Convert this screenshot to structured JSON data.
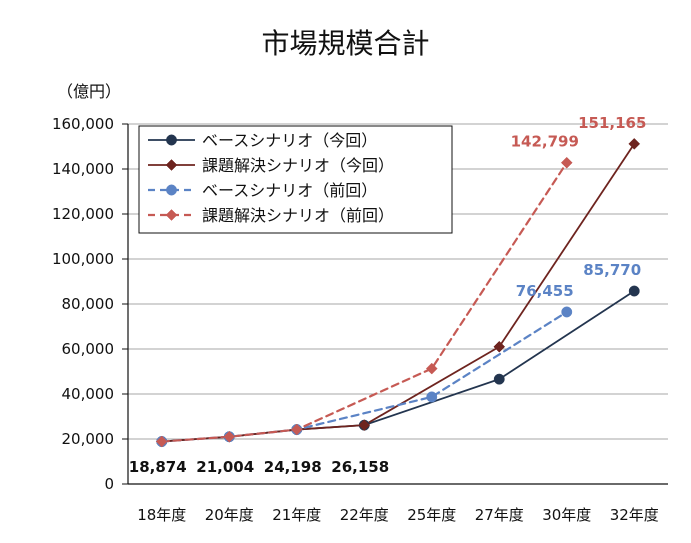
{
  "chart_data": {
    "type": "line",
    "title": "市場規模合計",
    "y_unit_label": "（億円）",
    "categories": [
      "18年度",
      "20年度",
      "21年度",
      "22年度",
      "25年度",
      "27年度",
      "30年度",
      "32年度"
    ],
    "ylim": [
      0,
      160000
    ],
    "y_ticks": [
      0,
      20000,
      40000,
      60000,
      80000,
      100000,
      120000,
      140000,
      160000
    ],
    "y_tick_labels": [
      "0",
      "20,000",
      "40,000",
      "60,000",
      "80,000",
      "100,000",
      "120,000",
      "140,000",
      "160,000"
    ],
    "grid": true,
    "legend_position": "top-left",
    "series": [
      {
        "name": "ベースシナリオ（今回）",
        "x": [
          0,
          1,
          2,
          3,
          5,
          7
        ],
        "values": [
          18874,
          21004,
          24198,
          26158,
          46600,
          85770
        ],
        "style": "solid",
        "marker": "circle",
        "color": "#23354f"
      },
      {
        "name": "課題解決シナリオ（今回）",
        "x": [
          0,
          1,
          2,
          3,
          5,
          7
        ],
        "values": [
          18874,
          21004,
          24198,
          26158,
          61000,
          151165
        ],
        "style": "solid",
        "marker": "diamond",
        "color": "#6e241f"
      },
      {
        "name": "ベースシナリオ（前回）",
        "x": [
          0,
          1,
          2,
          4,
          6
        ],
        "values": [
          18874,
          21004,
          24198,
          38700,
          76455
        ],
        "style": "dashed",
        "marker": "circle",
        "color": "#5b83c5"
      },
      {
        "name": "課題解決シナリオ（前回）",
        "x": [
          0,
          1,
          2,
          4,
          6
        ],
        "values": [
          18874,
          21004,
          24198,
          51300,
          142799
        ],
        "style": "dashed",
        "marker": "diamond",
        "color": "#c65a54"
      }
    ],
    "data_labels": [
      {
        "text": "18,874",
        "x": 0,
        "y": 18874,
        "color": "#111111"
      },
      {
        "text": "21,004",
        "x": 1,
        "y": 21004,
        "color": "#111111"
      },
      {
        "text": "24,198",
        "x": 2,
        "y": 24198,
        "color": "#111111"
      },
      {
        "text": "26,158",
        "x": 3,
        "y": 26158,
        "color": "#111111"
      },
      {
        "text": "76,455",
        "x": 6,
        "y": 76455,
        "color": "#5b83c5"
      },
      {
        "text": "85,770",
        "x": 7,
        "y": 85770,
        "color": "#5b83c5"
      },
      {
        "text": "142,799",
        "x": 6,
        "y": 142799,
        "color": "#c65a54"
      },
      {
        "text": "151,165",
        "x": 7,
        "y": 151165,
        "color": "#c65a54"
      }
    ]
  }
}
